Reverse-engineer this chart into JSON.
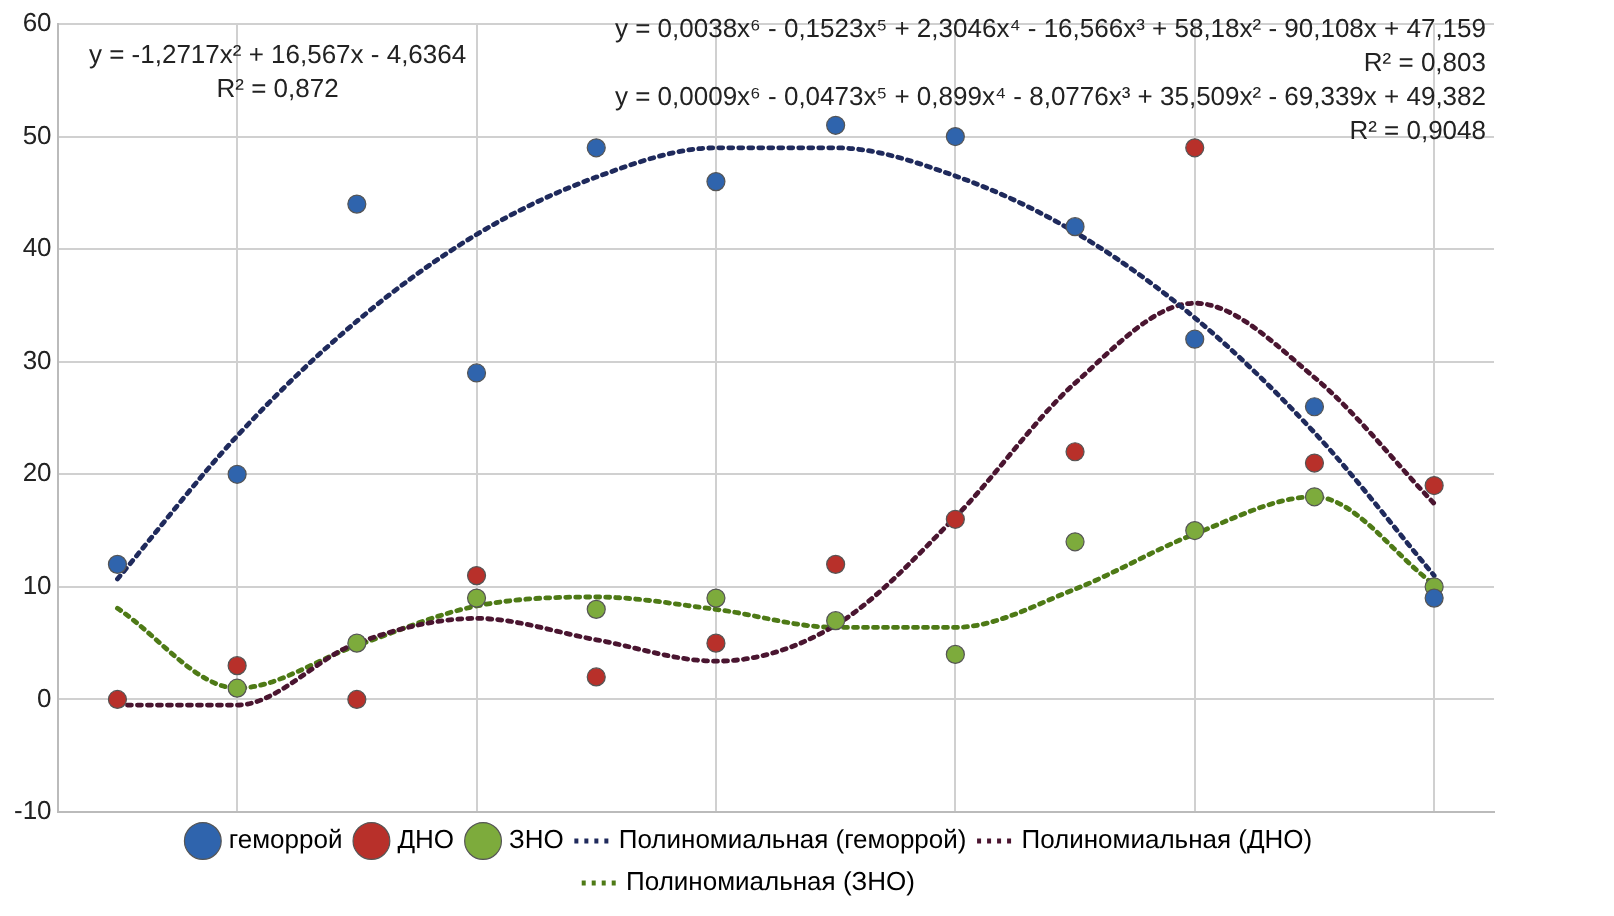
{
  "chart_data": {
    "type": "scatter",
    "categories": [
      null,
      null,
      null,
      null,
      null,
      null,
      null,
      null,
      null,
      null,
      null,
      null
    ],
    "series": [
      {
        "name": "геморрой",
        "type": "scatter",
        "color": "#2f64ad",
        "marker": "circle",
        "values": [
          12,
          20,
          44,
          29,
          49,
          46,
          51,
          50,
          42,
          32,
          26,
          9
        ]
      },
      {
        "name": "ДНО",
        "type": "scatter",
        "color": "#b8302a",
        "marker": "circle",
        "values": [
          0,
          3,
          0,
          11,
          2,
          5,
          12,
          16,
          22,
          49,
          21,
          19
        ]
      },
      {
        "name": "ЗНО",
        "type": "scatter",
        "color": "#7dab3c",
        "marker": "circle",
        "values": [
          null,
          1,
          5,
          9,
          8,
          9,
          7,
          4,
          14,
          15,
          18,
          10
        ]
      },
      {
        "name": "Полиномиальная (геморрой)",
        "type": "line",
        "color": "#1f2a5c",
        "marker": "none",
        "line_style": "dotted",
        "values": [
          10.7,
          23.4,
          33.6,
          41.3,
          46.4,
          49.0,
          49.0,
          46.5,
          41.5,
          33.9,
          23.7,
          11.0
        ]
      },
      {
        "name": "Полиномиальная (ДНО)",
        "type": "line",
        "color": "#4a1530",
        "marker": "none",
        "line_style": "dotted",
        "values": [
          -0.5,
          -0.5,
          5,
          7.2,
          5.3,
          3.4,
          6.6,
          16.2,
          28.1,
          35.2,
          28.6,
          17.4
        ]
      },
      {
        "name": "Полиномиальная (ЗНО)",
        "type": "line",
        "color": "#4e7a16",
        "marker": "none",
        "line_style": "dotted",
        "values": [
          8.1,
          1,
          4.8,
          8.3,
          9.1,
          8,
          6.4,
          6.4,
          9.8,
          14.7,
          18,
          10.2
        ]
      }
    ],
    "ylim": [
      -10,
      60
    ],
    "yticks": [
      -10,
      0,
      10,
      20,
      30,
      40,
      50,
      60
    ],
    "tick_labels": "y",
    "grid": true,
    "legend": "bottom",
    "annotations": [
      "y = -1,2717x² + 16,567x - 4,6364",
      "R² = 0,872",
      "y = 0,0038x⁶ - 0,1523x⁵ + 2,3046x⁴ - 16,566x³ + 58,18x² - 90,108x + 47,159",
      "R² = 0,803",
      "y = 0,0009x⁶ - 0,0473x⁵ + 0,899x⁴ - 8,0776x³ + 35,509x² - 69,339x + 49,382",
      "R² = 0,9048"
    ]
  }
}
